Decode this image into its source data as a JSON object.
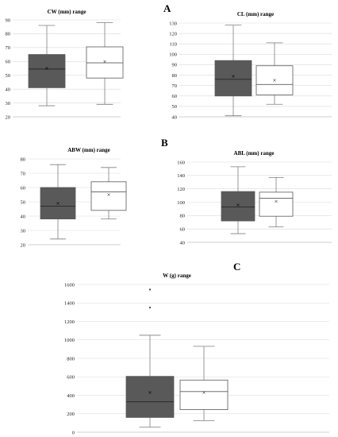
{
  "panel_letters": [
    "A",
    "B",
    "C"
  ],
  "colors": {
    "series_dark": "#595959",
    "series_light": "#ffffff",
    "median_dark": "#262626",
    "median_light": "#595959",
    "mean_dark": "#000000",
    "mean_light": "#404040"
  },
  "chart_data": [
    {
      "type": "box",
      "title": "CW (mm) range",
      "ylim": [
        20,
        90
      ],
      "yticks": [
        20,
        30,
        40,
        50,
        60,
        70,
        80,
        90
      ],
      "grid": true,
      "legend": "none",
      "series": [
        {
          "min": 28,
          "q1": 41,
          "median": 54.5,
          "q3": 65,
          "max": 86,
          "mean": 55,
          "outliers": []
        },
        {
          "min": 29,
          "q1": 48,
          "median": 59,
          "q3": 70.5,
          "max": 88,
          "mean": 60,
          "outliers": []
        }
      ]
    },
    {
      "type": "box",
      "title": "CL (mm) range",
      "ylim": [
        40,
        130
      ],
      "yticks": [
        40,
        50,
        60,
        70,
        80,
        90,
        100,
        110,
        120,
        130
      ],
      "grid": true,
      "legend": "none",
      "series": [
        {
          "min": 41,
          "q1": 60,
          "median": 76,
          "q3": 94,
          "max": 128,
          "mean": 79,
          "outliers": []
        },
        {
          "min": 52,
          "q1": 61,
          "median": 71,
          "q3": 89,
          "max": 111,
          "mean": 75,
          "outliers": []
        }
      ]
    },
    {
      "type": "box",
      "title": "ABW (mm) range",
      "ylim": [
        20,
        80
      ],
      "yticks": [
        20,
        30,
        40,
        50,
        60,
        70,
        80
      ],
      "grid": true,
      "legend": "none",
      "series": [
        {
          "min": 24,
          "q1": 38,
          "median": 47,
          "q3": 60,
          "max": 76,
          "mean": 49,
          "outliers": []
        },
        {
          "min": 38,
          "q1": 44,
          "median": 57,
          "q3": 64,
          "max": 74,
          "mean": 55,
          "outliers": []
        }
      ]
    },
    {
      "type": "box",
      "title": "ABL (mm) range",
      "ylim": [
        40,
        160
      ],
      "yticks": [
        40,
        60,
        80,
        100,
        120,
        140,
        160
      ],
      "grid": true,
      "legend": "none",
      "series": [
        {
          "min": 53,
          "q1": 72,
          "median": 93,
          "q3": 116,
          "max": 153,
          "mean": 96,
          "outliers": []
        },
        {
          "min": 63,
          "q1": 79,
          "median": 106,
          "q3": 115,
          "max": 137,
          "mean": 101,
          "outliers": []
        }
      ]
    },
    {
      "type": "box",
      "title": "W (g) range",
      "ylim": [
        0,
        1600
      ],
      "yticks": [
        0,
        200,
        400,
        600,
        800,
        1000,
        1200,
        1400,
        1600
      ],
      "grid": true,
      "legend": "none",
      "series": [
        {
          "min": 55,
          "q1": 160,
          "median": 330,
          "q3": 605,
          "max": 1050,
          "mean": 430,
          "outliers": [
            1350,
            1545
          ]
        },
        {
          "min": 125,
          "q1": 245,
          "median": 440,
          "q3": 565,
          "max": 930,
          "mean": 430,
          "outliers": []
        }
      ]
    }
  ]
}
